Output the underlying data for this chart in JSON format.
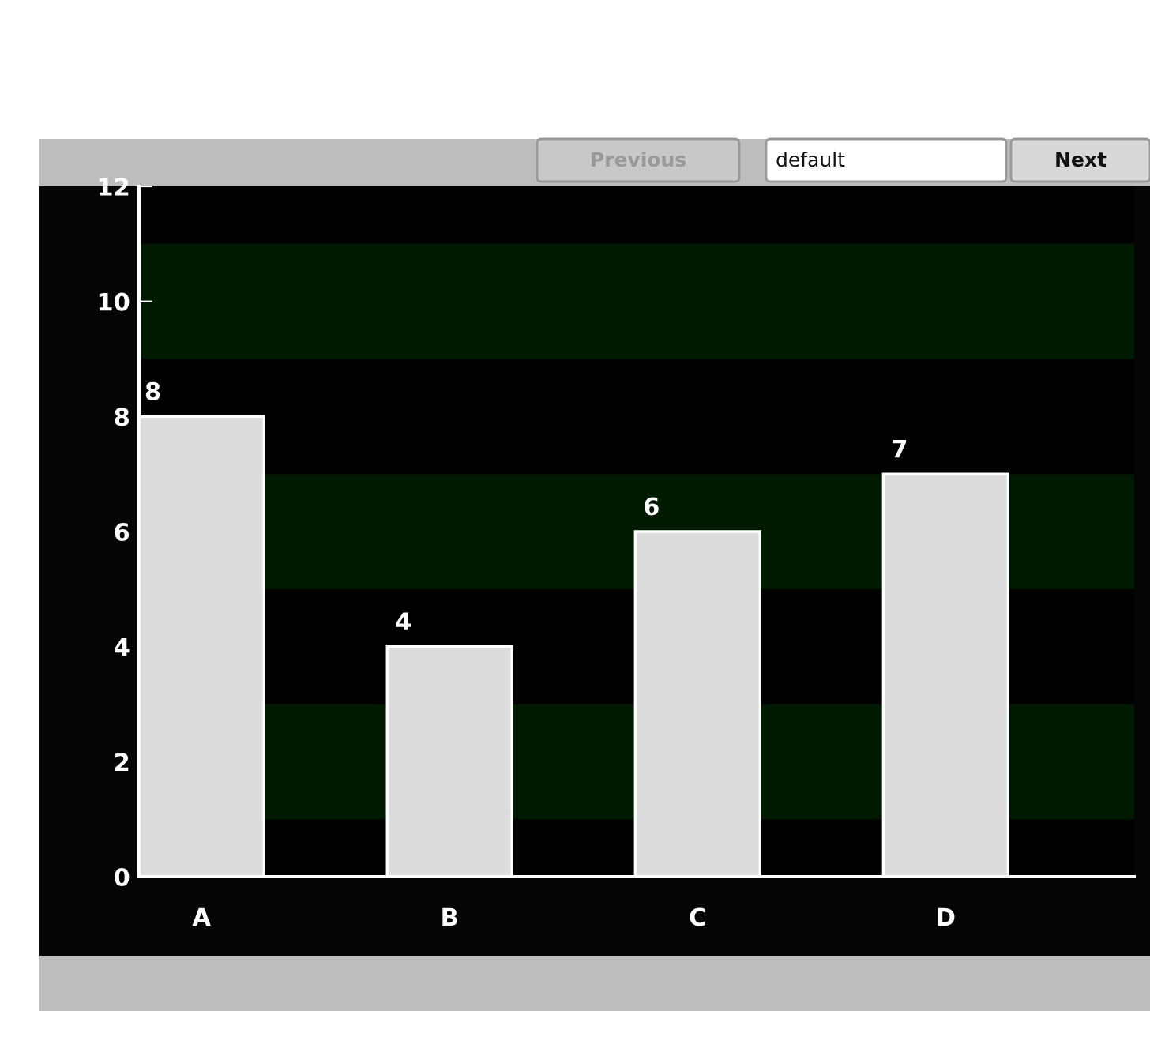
{
  "chart_data": {
    "type": "bar",
    "categories": [
      "A",
      "B",
      "C",
      "D"
    ],
    "values": [
      8,
      4,
      6,
      7
    ],
    "color": "#dcdcdc",
    "data_labels": true,
    "ylim": [
      0,
      12
    ],
    "yticks": [
      0,
      2,
      4,
      6,
      8,
      10,
      12
    ],
    "grid": false,
    "legend": false,
    "bands": [
      {
        "axis": "y",
        "from": 1,
        "to": 3,
        "color": "#001a00"
      },
      {
        "axis": "y",
        "from": 5,
        "to": 7,
        "color": "#001a00"
      },
      {
        "axis": "y",
        "from": 9,
        "to": 11,
        "color": "#001a00"
      }
    ],
    "annotations": [
      "Previous",
      "default",
      "Next"
    ]
  }
}
